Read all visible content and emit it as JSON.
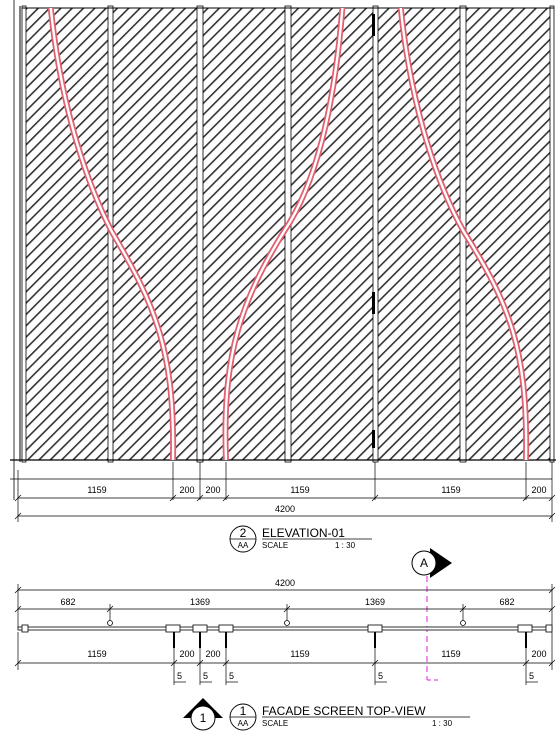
{
  "colors": {
    "line": "#000000",
    "hatch": "#333333",
    "curve_outline": "#e06070",
    "curve_fill": "#ffffff",
    "section_line": "#e020e0"
  },
  "elevation": {
    "dims": [
      "1159",
      "200",
      "200",
      "1159",
      "1159",
      "200"
    ],
    "total": "4200",
    "title_num": "2",
    "title_ref": "AA",
    "title": "ELEVATION-01",
    "scale_label": "SCALE",
    "scale_value": "1 : 30"
  },
  "top_view": {
    "total": "4200",
    "spacing": [
      "682",
      "1369",
      "1369",
      "682"
    ],
    "dims": [
      "1159",
      "200",
      "200",
      "1159",
      "1159",
      "200"
    ],
    "tags": [
      "5",
      "5",
      "5",
      "5",
      "5"
    ],
    "section_marker": "A",
    "title_num": "1",
    "title_ref": "AA",
    "title": "FACADE SCREEN TOP-VIEW",
    "scale_label": "SCALE",
    "scale_value": "1 : 30",
    "view_marker": "1"
  }
}
